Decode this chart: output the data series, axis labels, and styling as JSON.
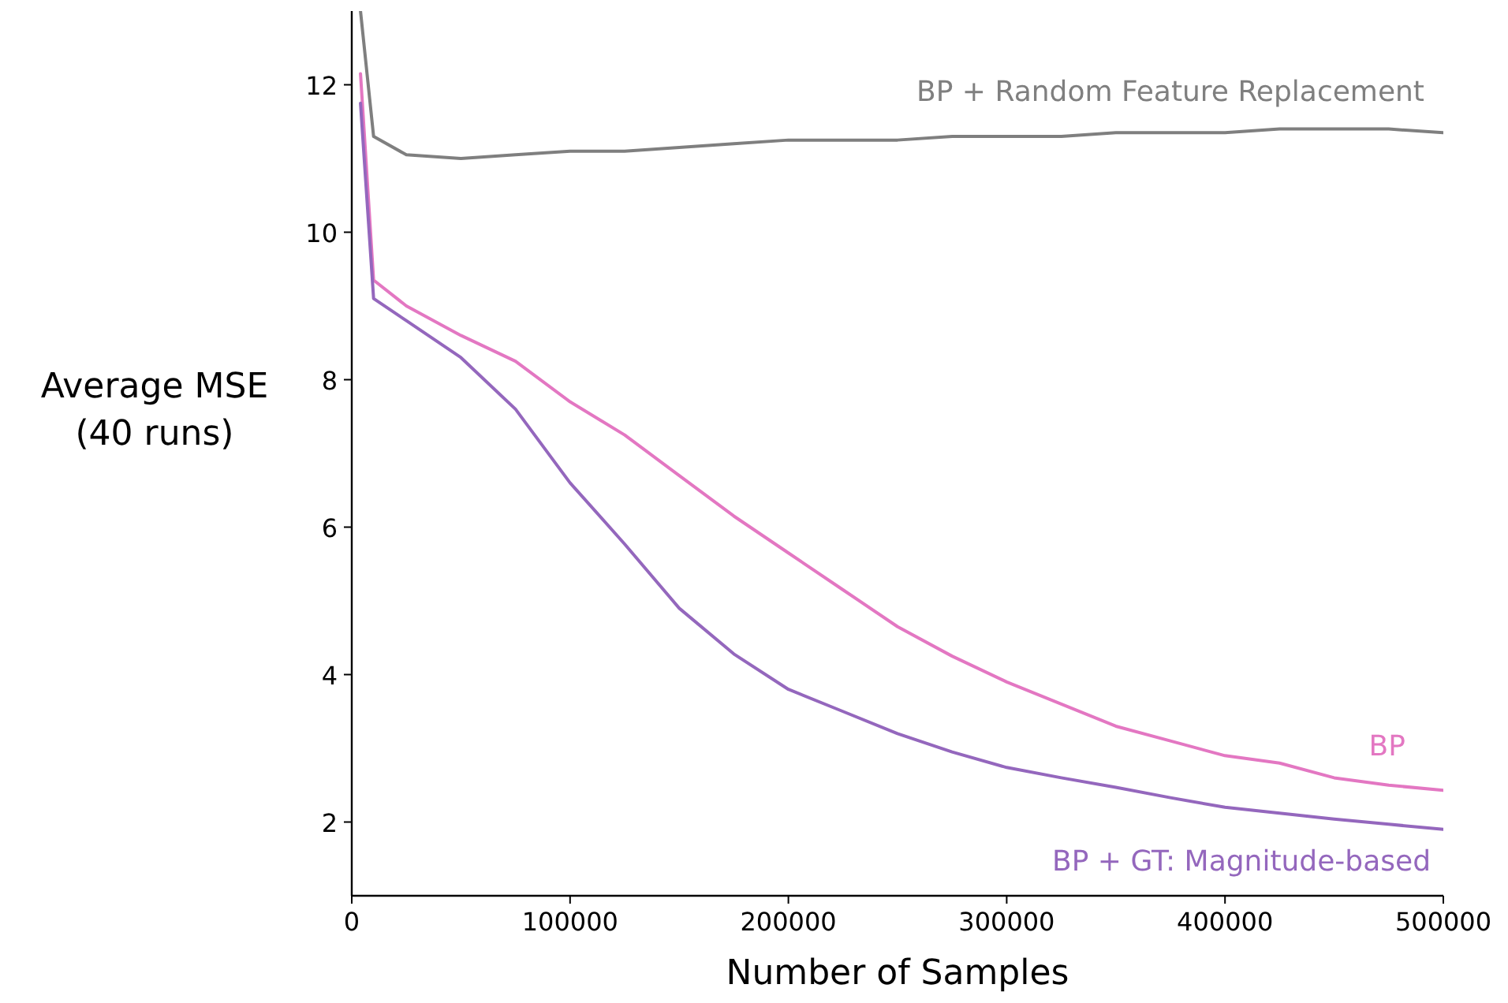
{
  "chart_data": {
    "type": "line",
    "xlabel": "Number of Samples",
    "ylabel": "Average MSE\n(40 runs)",
    "x": [
      4000,
      10000,
      25000,
      50000,
      75000,
      100000,
      125000,
      150000,
      175000,
      200000,
      225000,
      250000,
      275000,
      300000,
      325000,
      350000,
      375000,
      400000,
      425000,
      450000,
      475000,
      500000
    ],
    "series": [
      {
        "name": "BP + Random Feature Replacement",
        "color": "#7f7f7f",
        "values": [
          13,
          11.3,
          11.05,
          11.0,
          11.05,
          11.1,
          11.1,
          11.15,
          11.2,
          11.25,
          11.25,
          11.25,
          11.3,
          11.3,
          11.3,
          11.35,
          11.35,
          11.35,
          11.4,
          11.4,
          11.4,
          11.35
        ]
      },
      {
        "name": "BP",
        "color": "#e377c2",
        "values": [
          12.15,
          9.35,
          9.0,
          8.6,
          8.25,
          7.7,
          7.25,
          6.7,
          6.15,
          5.65,
          5.15,
          4.65,
          4.25,
          3.9,
          3.6,
          3.3,
          3.1,
          2.9,
          2.8,
          2.6,
          2.5,
          2.43
        ]
      },
      {
        "name": "BP + GT: Magnitude-based",
        "color": "#9467bd",
        "values": [
          11.75,
          9.1,
          8.8,
          8.3,
          7.6,
          6.6,
          5.77,
          4.9,
          4.28,
          3.8,
          3.5,
          3.2,
          2.95,
          2.74,
          2.6,
          2.47,
          2.33,
          2.2,
          2.12,
          2.04,
          1.97,
          1.9
        ]
      }
    ],
    "xlim": [
      0,
      500000
    ],
    "xticks": [
      0,
      100000,
      200000,
      300000,
      400000,
      500000
    ],
    "ylim": [
      1,
      13
    ],
    "yticks": [
      2,
      4,
      6,
      8,
      10,
      12
    ],
    "grid": false,
    "marker": "none",
    "line_style": "solid"
  }
}
